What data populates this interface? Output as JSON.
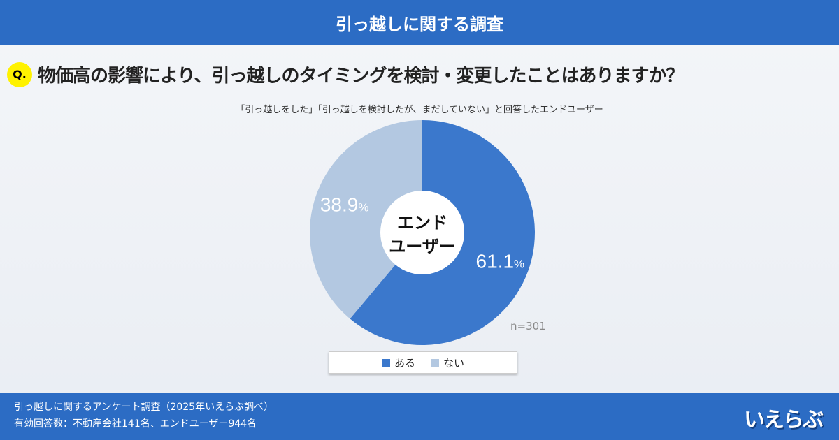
{
  "header": {
    "title": "引っ越しに関する調査"
  },
  "question": {
    "badge": "Q.",
    "text": "物価高の影響により、引っ越しのタイミングを検討・変更したことはありますか？"
  },
  "subtitle": "「引っ越しをした」「引っ越しを検討したが、まだしていない」と回答したエンドユーザー",
  "chart_data": {
    "type": "pie",
    "center_label_lines": [
      "エンド",
      "ユーザー"
    ],
    "categories": [
      "ある",
      "ない"
    ],
    "values": [
      61.1,
      38.9
    ],
    "value_labels": [
      "61.1",
      "38.9"
    ],
    "unit": "%",
    "colors": [
      "#3b78cc",
      "#b3c8e1"
    ],
    "sample": "n=301",
    "legend_position": "bottom"
  },
  "footer": {
    "line1": "引っ越しに関するアンケート調査（2025年いえらぶ調べ）",
    "line2": "有効回答数：不動産会社141名、エンドユーザー944名",
    "logo": "いえらぶ"
  }
}
